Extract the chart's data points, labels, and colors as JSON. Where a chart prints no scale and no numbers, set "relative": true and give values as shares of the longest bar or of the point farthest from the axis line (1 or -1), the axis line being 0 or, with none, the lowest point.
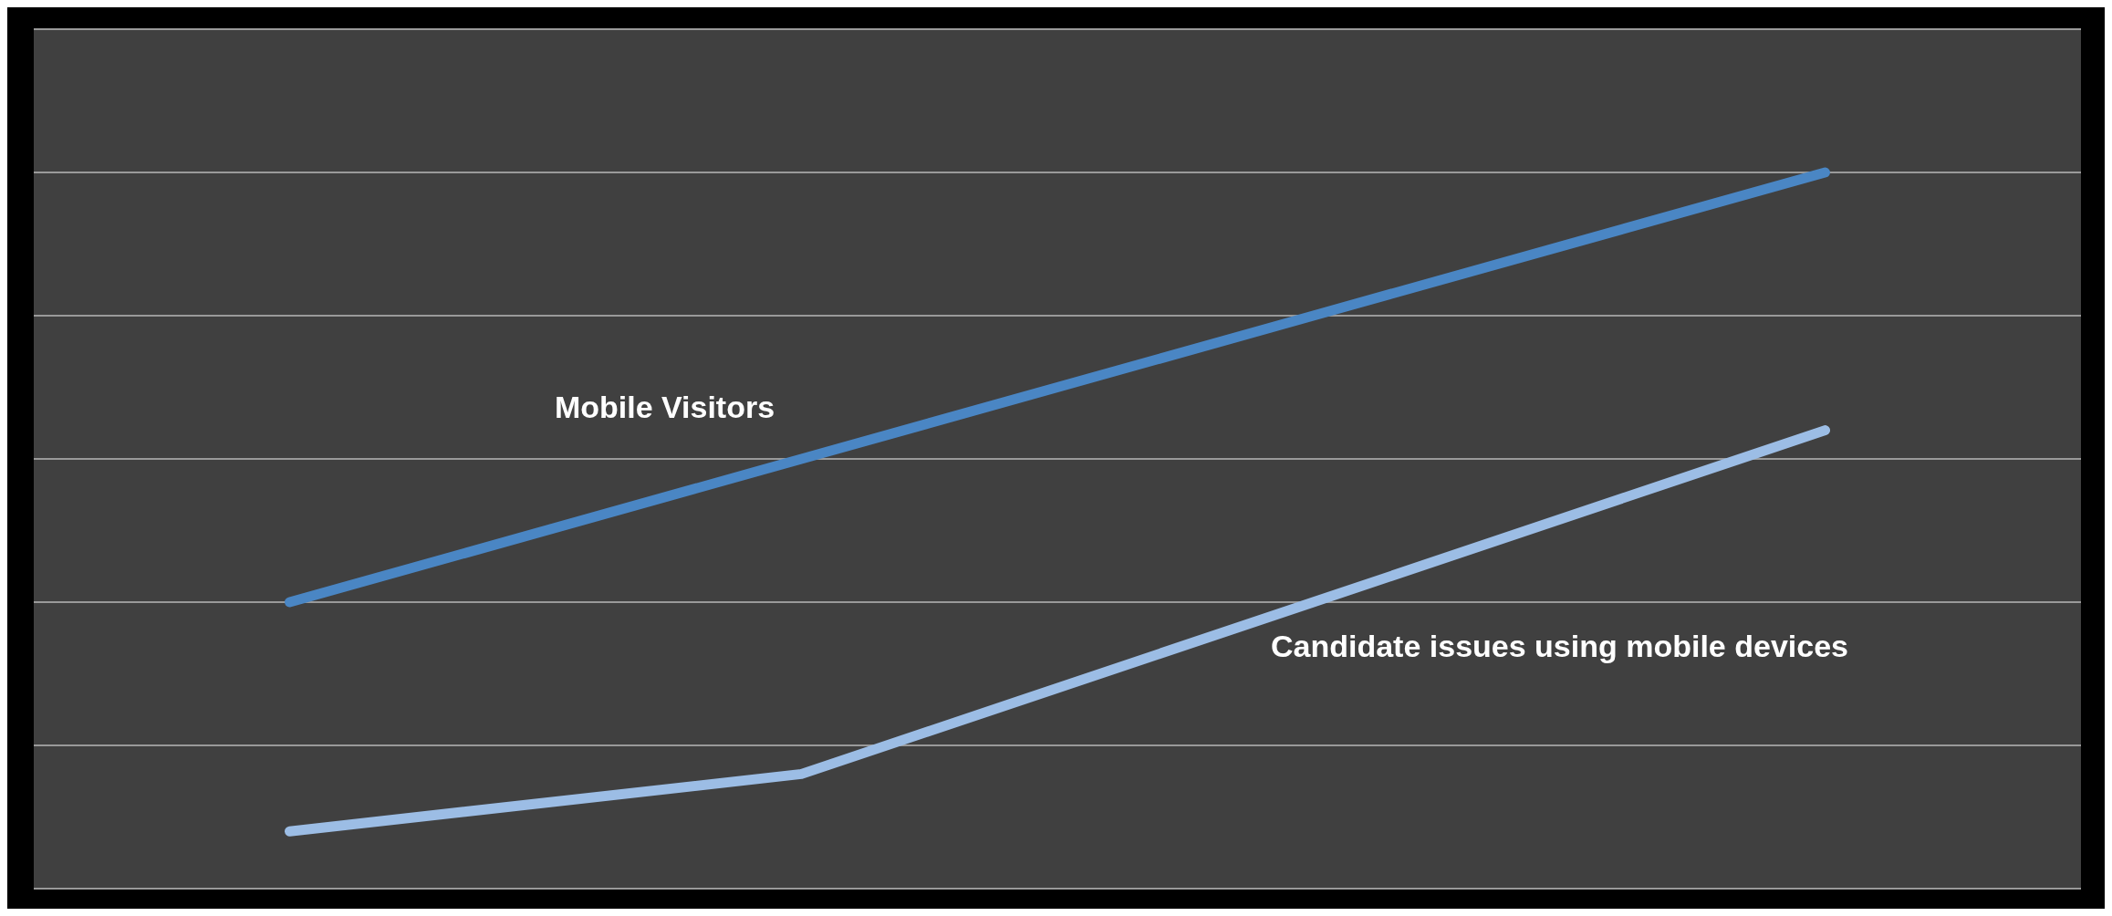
{
  "chart_data": {
    "type": "line",
    "relative": true,
    "categories": [
      null,
      null,
      null,
      null
    ],
    "grid": "y",
    "marker": "none",
    "line_style": "solid",
    "series": [
      {
        "name": "Mobile Visitors",
        "color": "#4a86c4",
        "values": [
          0.4,
          0.6,
          0.8,
          1.0
        ]
      },
      {
        "name": "Candidate issues using mobile devices",
        "color": "#9cbde5",
        "values": [
          0.08,
          0.16,
          0.4,
          0.64
        ]
      }
    ]
  }
}
